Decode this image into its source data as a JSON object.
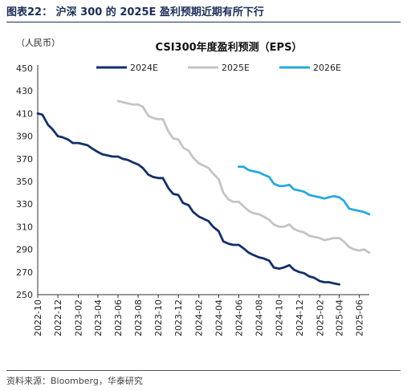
{
  "figure": {
    "title": "图表22：  沪深 300 的 2025E 盈利预期近期有所下行",
    "source": "资料来源：Bloomberg，华泰研究"
  },
  "chart_data": {
    "type": "line",
    "title": "CSI300年度盈利预测（EPS）",
    "ylabel": "（人民币）",
    "ylim": [
      250,
      450
    ],
    "yticks": [
      250,
      270,
      290,
      310,
      330,
      350,
      370,
      390,
      410,
      430,
      450
    ],
    "xlim": [
      "2022-10",
      "2025-07"
    ],
    "xticks": [
      "2022-10",
      "2022-12",
      "2023-02",
      "2023-04",
      "2023-06",
      "2023-08",
      "2023-10",
      "2023-12",
      "2024-02",
      "2024-04",
      "2024-06",
      "2024-08",
      "2024-10",
      "2024-12",
      "2025-02",
      "2025-04",
      "2025-06"
    ],
    "legend_position": "top",
    "grid": false,
    "series": [
      {
        "name": "2024E",
        "color": "#13306a",
        "points": [
          [
            "2022-10",
            410
          ],
          [
            "2022-10-15",
            409
          ],
          [
            "2022-11-01",
            400
          ],
          [
            "2022-11-15",
            396
          ],
          [
            "2022-12-01",
            390
          ],
          [
            "2022-12-15",
            389
          ],
          [
            "2023-01-01",
            387
          ],
          [
            "2023-01-15",
            384
          ],
          [
            "2023-02-01",
            384
          ],
          [
            "2023-02-15",
            383
          ],
          [
            "2023-03-01",
            382
          ],
          [
            "2023-03-15",
            379
          ],
          [
            "2023-04-01",
            376
          ],
          [
            "2023-04-15",
            374
          ],
          [
            "2023-05-01",
            373
          ],
          [
            "2023-05-15",
            372
          ],
          [
            "2023-06-01",
            372
          ],
          [
            "2023-06-15",
            370
          ],
          [
            "2023-07-01",
            369
          ],
          [
            "2023-07-15",
            367
          ],
          [
            "2023-08-01",
            365
          ],
          [
            "2023-08-15",
            362
          ],
          [
            "2023-09-01",
            356
          ],
          [
            "2023-09-15",
            354
          ],
          [
            "2023-10-01",
            353
          ],
          [
            "2023-10-15",
            353
          ],
          [
            "2023-11-01",
            344
          ],
          [
            "2023-11-15",
            339
          ],
          [
            "2023-12-01",
            338
          ],
          [
            "2023-12-15",
            331
          ],
          [
            "2024-01-01",
            329
          ],
          [
            "2024-01-15",
            323
          ],
          [
            "2024-02-01",
            319
          ],
          [
            "2024-02-15",
            317
          ],
          [
            "2024-03-01",
            315
          ],
          [
            "2024-03-15",
            310
          ],
          [
            "2024-04-01",
            306
          ],
          [
            "2024-04-15",
            297
          ],
          [
            "2024-05-01",
            295
          ],
          [
            "2024-05-15",
            294
          ],
          [
            "2024-06-01",
            294
          ],
          [
            "2024-06-15",
            291
          ],
          [
            "2024-07-01",
            287
          ],
          [
            "2024-07-15",
            285
          ],
          [
            "2024-08-01",
            283
          ],
          [
            "2024-08-15",
            282
          ],
          [
            "2024-09-01",
            280
          ],
          [
            "2024-09-15",
            274
          ],
          [
            "2024-10-01",
            273
          ],
          [
            "2024-10-15",
            274
          ],
          [
            "2024-11-01",
            276
          ],
          [
            "2024-11-15",
            272
          ],
          [
            "2024-12-01",
            270
          ],
          [
            "2024-12-15",
            269
          ],
          [
            "2025-01-01",
            266
          ],
          [
            "2025-01-15",
            265
          ],
          [
            "2025-02-01",
            262
          ],
          [
            "2025-02-15",
            261
          ],
          [
            "2025-03-01",
            261
          ],
          [
            "2025-03-15",
            260
          ],
          [
            "2025-04-01",
            259
          ]
        ]
      },
      {
        "name": "2025E",
        "color": "#c4c4c4",
        "points": [
          [
            "2023-06",
            421
          ],
          [
            "2023-06-15",
            420
          ],
          [
            "2023-07-01",
            419
          ],
          [
            "2023-07-15",
            418
          ],
          [
            "2023-08-01",
            418
          ],
          [
            "2023-08-15",
            416
          ],
          [
            "2023-09-01",
            408
          ],
          [
            "2023-09-15",
            406
          ],
          [
            "2023-10-01",
            405
          ],
          [
            "2023-10-15",
            405
          ],
          [
            "2023-11-01",
            394
          ],
          [
            "2023-11-15",
            388
          ],
          [
            "2023-12-01",
            387
          ],
          [
            "2023-12-15",
            380
          ],
          [
            "2024-01-01",
            377
          ],
          [
            "2024-01-15",
            371
          ],
          [
            "2024-02-01",
            366
          ],
          [
            "2024-02-15",
            364
          ],
          [
            "2024-03-01",
            362
          ],
          [
            "2024-03-15",
            357
          ],
          [
            "2024-04-01",
            352
          ],
          [
            "2024-04-15",
            340
          ],
          [
            "2024-05-01",
            334
          ],
          [
            "2024-05-15",
            332
          ],
          [
            "2024-06-01",
            332
          ],
          [
            "2024-06-15",
            328
          ],
          [
            "2024-07-01",
            324
          ],
          [
            "2024-07-15",
            322
          ],
          [
            "2024-08-01",
            321
          ],
          [
            "2024-08-15",
            319
          ],
          [
            "2024-09-01",
            316
          ],
          [
            "2024-09-15",
            312
          ],
          [
            "2024-10-01",
            310
          ],
          [
            "2024-10-15",
            310
          ],
          [
            "2024-11-01",
            312
          ],
          [
            "2024-11-15",
            308
          ],
          [
            "2024-12-01",
            306
          ],
          [
            "2024-12-15",
            305
          ],
          [
            "2025-01-01",
            302
          ],
          [
            "2025-01-15",
            301
          ],
          [
            "2025-02-01",
            300
          ],
          [
            "2025-02-15",
            298
          ],
          [
            "2025-03-01",
            299
          ],
          [
            "2025-03-15",
            300
          ],
          [
            "2025-04-01",
            300
          ],
          [
            "2025-04-15",
            297
          ],
          [
            "2025-05-01",
            292
          ],
          [
            "2025-05-15",
            290
          ],
          [
            "2025-06-01",
            289
          ],
          [
            "2025-06-15",
            290
          ],
          [
            "2025-07-01",
            287
          ]
        ]
      },
      {
        "name": "2026E",
        "color": "#29a8df",
        "points": [
          [
            "2024-06",
            363
          ],
          [
            "2024-06-15",
            363
          ],
          [
            "2024-07-01",
            360
          ],
          [
            "2024-07-15",
            359
          ],
          [
            "2024-08-01",
            358
          ],
          [
            "2024-08-15",
            356
          ],
          [
            "2024-09-01",
            354
          ],
          [
            "2024-09-15",
            348
          ],
          [
            "2024-10-01",
            346
          ],
          [
            "2024-10-15",
            346
          ],
          [
            "2024-11-01",
            347
          ],
          [
            "2024-11-15",
            343
          ],
          [
            "2024-12-01",
            342
          ],
          [
            "2024-12-15",
            341
          ],
          [
            "2025-01-01",
            338
          ],
          [
            "2025-01-15",
            337
          ],
          [
            "2025-02-01",
            336
          ],
          [
            "2025-02-15",
            335
          ],
          [
            "2025-03-01",
            336
          ],
          [
            "2025-03-15",
            337
          ],
          [
            "2025-04-01",
            336
          ],
          [
            "2025-04-15",
            333
          ],
          [
            "2025-05-01",
            326
          ],
          [
            "2025-05-15",
            325
          ],
          [
            "2025-06-01",
            324
          ],
          [
            "2025-06-15",
            323
          ],
          [
            "2025-07-01",
            321
          ]
        ]
      }
    ]
  }
}
